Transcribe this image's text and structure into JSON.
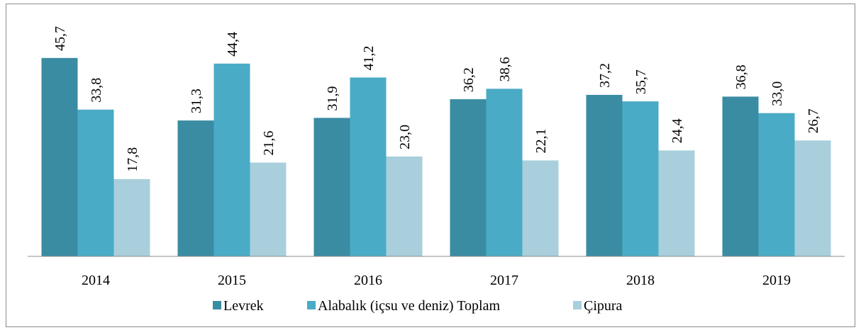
{
  "chart_data": {
    "type": "bar",
    "categories": [
      "2014",
      "2015",
      "2016",
      "2017",
      "2018",
      "2019"
    ],
    "series": [
      {
        "name": "Levrek",
        "color": "#3a8ca3",
        "values": [
          45.7,
          31.3,
          31.9,
          36.2,
          37.2,
          36.8
        ],
        "value_labels": [
          "45,7",
          "31,3",
          "31,9",
          "36,2",
          "37,2",
          "36,8"
        ]
      },
      {
        "name": "Alabalık (içsu ve deniz) Toplam",
        "color": "#4aabc6",
        "values": [
          33.8,
          44.4,
          41.2,
          38.6,
          35.7,
          33.0
        ],
        "value_labels": [
          "33,8",
          "44,4",
          "41,2",
          "38,6",
          "35,7",
          "33,0"
        ]
      },
      {
        "name": "Çipura",
        "color": "#a9cfdc",
        "values": [
          17.8,
          21.6,
          23.0,
          22.1,
          24.4,
          26.7
        ],
        "value_labels": [
          "17,8",
          "21,6",
          "23,0",
          "22,1",
          "24,4",
          "26,7"
        ]
      }
    ],
    "legend": "bottom"
  }
}
